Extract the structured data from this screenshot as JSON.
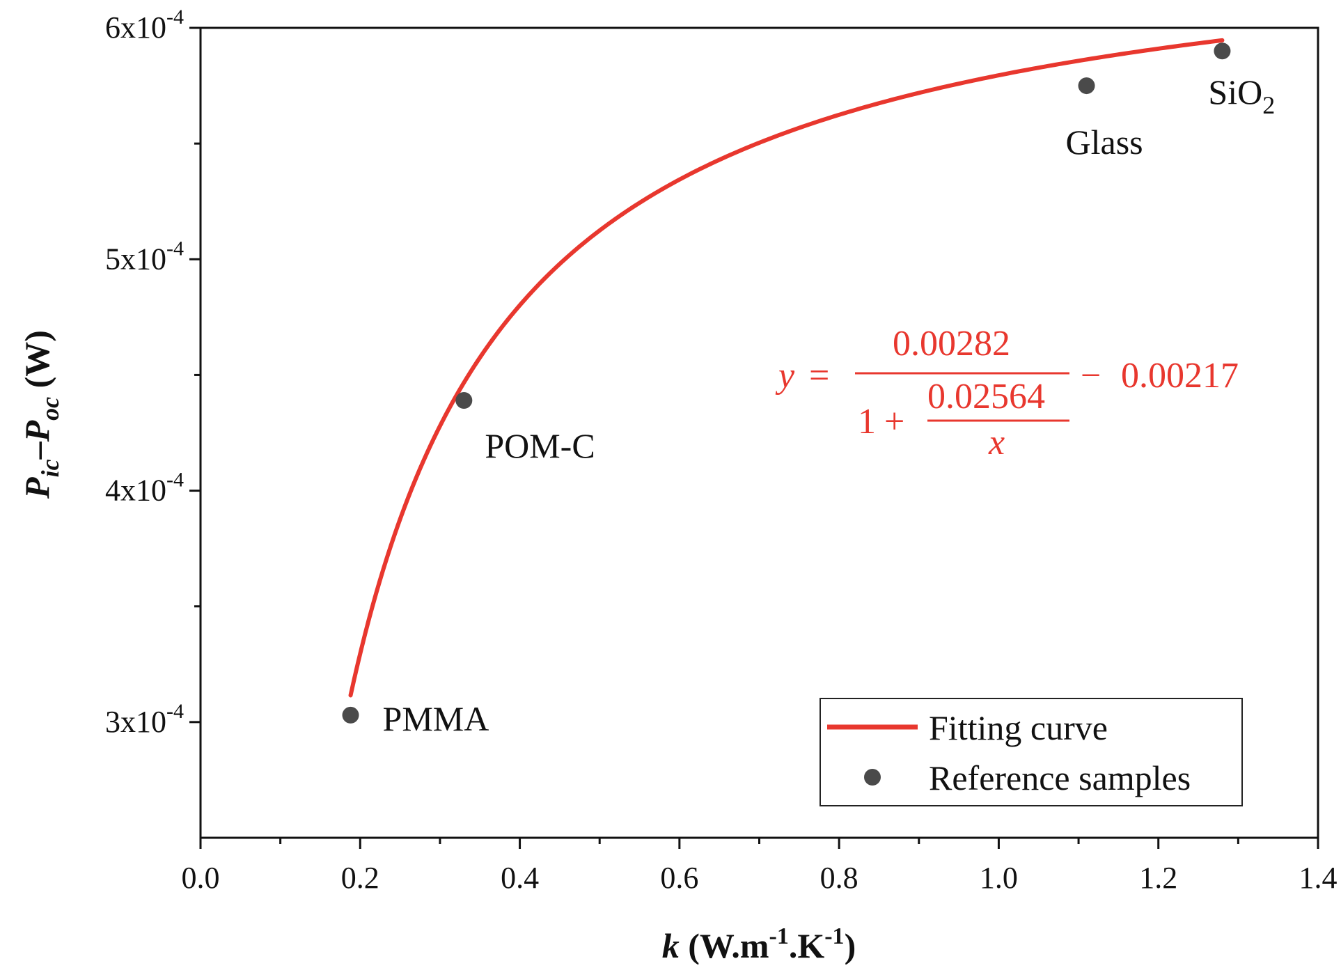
{
  "chart_data": {
    "type": "scatter",
    "x_range": [
      0.0,
      1.4
    ],
    "y_range": [
      0.00025,
      0.0006
    ],
    "x_ticks": [
      {
        "value": 0.0,
        "label": "0.0"
      },
      {
        "value": 0.2,
        "label": "0.2"
      },
      {
        "value": 0.4,
        "label": "0.4"
      },
      {
        "value": 0.6,
        "label": "0.6"
      },
      {
        "value": 0.8,
        "label": "0.8"
      },
      {
        "value": 1.0,
        "label": "1.0"
      },
      {
        "value": 1.2,
        "label": "1.2"
      },
      {
        "value": 1.4,
        "label": "1.4"
      }
    ],
    "y_ticks": [
      {
        "value": 0.0003,
        "mantissa": "3x10",
        "exponent": "-4"
      },
      {
        "value": 0.0004,
        "mantissa": "4x10",
        "exponent": "-4"
      },
      {
        "value": 0.0005,
        "mantissa": "5x10",
        "exponent": "-4"
      },
      {
        "value": 0.0006,
        "mantissa": "6x10",
        "exponent": "-4"
      }
    ],
    "xlabel": {
      "symbol": "k",
      "unit_a": " (W.m",
      "exp_a": "-1",
      "unit_b": ".K",
      "exp_b": "-1",
      "unit_c": ")"
    },
    "ylabel": {
      "p1": "P",
      "s1": "ic",
      "dash": "–",
      "p2": "P",
      "s2": "oc",
      "unit": " (W)"
    },
    "series": [
      {
        "name": "Reference samples",
        "kind": "scatter",
        "color": "#4a4a4a",
        "points": [
          {
            "x": 0.188,
            "y": 0.000303,
            "label": "PMMA",
            "sub": ""
          },
          {
            "x": 0.33,
            "y": 0.000439,
            "label": "POM-C",
            "sub": ""
          },
          {
            "x": 1.11,
            "y": 0.000575,
            "label": "Glass",
            "sub": ""
          },
          {
            "x": 1.28,
            "y": 0.00059,
            "label": "SiO",
            "sub": "2"
          }
        ]
      },
      {
        "name": "Fitting curve",
        "kind": "line",
        "color": "#e8372e",
        "formula": {
          "a": 0.00282,
          "b": 0.02564,
          "c": 0.00217
        },
        "x_start": 0.188,
        "x_end": 1.28
      }
    ],
    "equation": {
      "lhs": "y",
      "eq": "=",
      "numerator": "0.00282",
      "one": "1",
      "plus": "+",
      "inner_num": "0.02564",
      "inner_den": "x",
      "minus": "−",
      "tail": "0.00217"
    },
    "legend": {
      "placement": "bottom-right"
    },
    "grid": false
  }
}
